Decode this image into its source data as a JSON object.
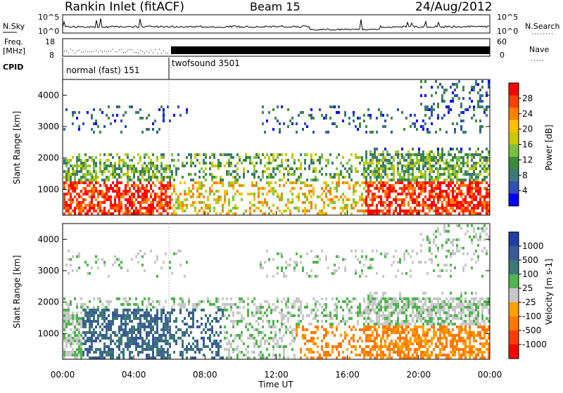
{
  "header": {
    "title": "Rankin Inlet (fitACF)",
    "beam": "Beam 15",
    "date": "24/Aug/2012"
  },
  "strip": {
    "nsky_label": "N.Sky",
    "nsky_ticks": [
      "10^5",
      "10^0"
    ],
    "nsearch_label": "N.Search",
    "nsearch_ticks": [
      "10^5",
      "10^0"
    ],
    "freq_label": "Freq.",
    "freq_unit": "[MHz]",
    "freq_ticks": [
      "18",
      "8"
    ],
    "nave_label": "Nave",
    "nave_ticks": [
      "60",
      "0"
    ],
    "cpid_label": "CPID",
    "cpid_modes": [
      {
        "name": "normal (fast) 151",
        "start": 0,
        "end": 6
      },
      {
        "name": "twofsound 3501",
        "start": 6,
        "end": 24
      }
    ]
  },
  "chart_data": [
    {
      "type": "heatmap",
      "title": "",
      "ylabel": "Slant Range [km]",
      "xlabel": "",
      "xlim": [
        0,
        24
      ],
      "ylim": [
        180,
        4500
      ],
      "yticks": [
        "1000",
        "2000",
        "3000",
        "4000"
      ],
      "colorbar": {
        "label": "Power [dB]",
        "ticks": [
          "28",
          "24",
          "20",
          "16",
          "12",
          "8",
          "4"
        ],
        "colors": [
          "#ff0000",
          "#ff4000",
          "#ff8000",
          "#ffc000",
          "#c8c800",
          "#7ac043",
          "#3c8c3c",
          "#3c7878",
          "#3050b0",
          "#0000ff"
        ]
      }
    },
    {
      "type": "heatmap",
      "title": "",
      "ylabel": "Slant Range [km]",
      "xlabel": "Time UT",
      "xlim": [
        0,
        24
      ],
      "ylim": [
        180,
        4500
      ],
      "yticks": [
        "1000",
        "2000",
        "3000",
        "4000"
      ],
      "xticks": [
        "00:00",
        "04:00",
        "08:00",
        "12:00",
        "16:00",
        "20:00",
        "00:00"
      ],
      "colorbar": {
        "label": "Velocity [m s-1]",
        "ticks": [
          "1000",
          "500",
          "100",
          "25",
          "-25",
          "-100",
          "-500",
          "-1000"
        ],
        "colors": [
          "#1e3ea0",
          "#3c5a96",
          "#3c7878",
          "#50b450",
          "#c8c8c8",
          "#ffa000",
          "#ff7800",
          "#ff3c00",
          "#ff0000"
        ]
      }
    }
  ]
}
